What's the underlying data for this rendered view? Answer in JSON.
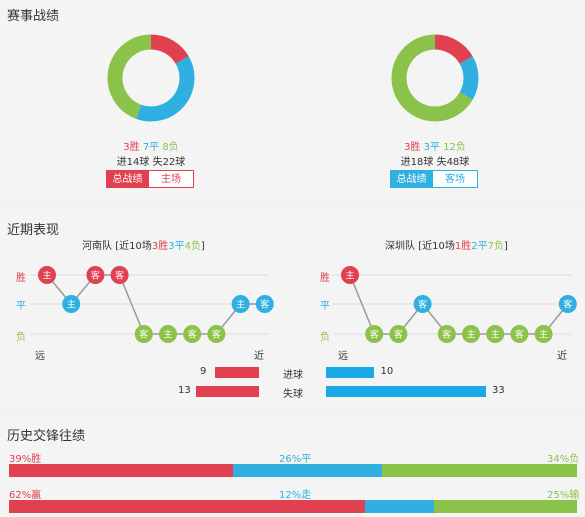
{
  "colors": {
    "win": "#e04050",
    "draw": "#30b0e0",
    "loss": "#8bc34a"
  },
  "record": {
    "title": "赛事战绩",
    "left": {
      "win": "3胜",
      "draw": "7平",
      "loss": "8负",
      "goals": "进14球  失22球",
      "btn_total": "总战绩",
      "btn_side": "主场",
      "slices": [
        3,
        7,
        8
      ]
    },
    "right": {
      "win": "3胜",
      "draw": "3平",
      "loss": "12负",
      "goals": "进18球  失48球",
      "btn_total": "总战绩",
      "btn_side": "客场",
      "slices": [
        3,
        3,
        12
      ]
    }
  },
  "recent": {
    "title": "近期表现",
    "legend": {
      "win": "胜",
      "draw": "平",
      "loss": "负",
      "far": "远",
      "near": "近"
    },
    "left": {
      "team": "河南队",
      "pre": "[近10场",
      "w": "3胜",
      "d": "3平",
      "l": "4负",
      "post": "]",
      "results": [
        "胜",
        "平",
        "胜",
        "胜",
        "负",
        "负",
        "负",
        "负",
        "平",
        "平"
      ],
      "venues": [
        "主",
        "主",
        "客",
        "客",
        "客",
        "主",
        "客",
        "客",
        "主",
        "客"
      ],
      "scored": "9",
      "conceded": "13",
      "scored_val": 9,
      "conceded_val": 13
    },
    "right": {
      "team": "深圳队",
      "pre": "[近10场",
      "w": "1胜",
      "d": "2平",
      "l": "7负",
      "post": "]",
      "results": [
        "胜",
        "负",
        "负",
        "平",
        "负",
        "负",
        "负",
        "负",
        "负",
        "平"
      ],
      "venues": [
        "主",
        "客",
        "客",
        "客",
        "客",
        "主",
        "主",
        "客",
        "主",
        "客"
      ],
      "scored": "10",
      "conceded": "33",
      "scored_val": 10,
      "conceded_val": 33
    },
    "goals_label": "进球",
    "against_label": "失球"
  },
  "history": {
    "title": "历史交锋往绩",
    "row1": {
      "a": "39%胜",
      "b": "26%平",
      "c": "34%负",
      "va": 39,
      "vb": 26,
      "vc": 34
    },
    "row2": {
      "a": "62%赢",
      "b": "12%走",
      "c": "25%输",
      "va": 62,
      "vb": 12,
      "vc": 25
    }
  }
}
